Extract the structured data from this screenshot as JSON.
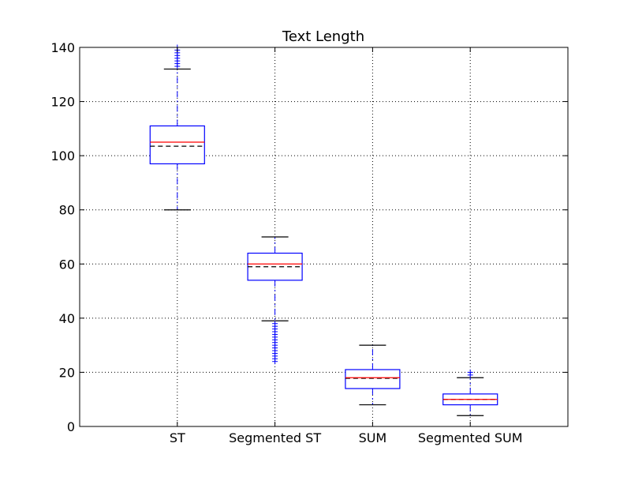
{
  "chart_data": {
    "type": "box",
    "title": "Text Length",
    "xlabel": "",
    "ylabel": "",
    "ylim": [
      0,
      140
    ],
    "yticks": [
      0,
      20,
      40,
      60,
      80,
      100,
      120,
      140
    ],
    "grid": true,
    "categories": [
      "ST",
      "Segmented ST",
      "SUM",
      "Segmented SUM"
    ],
    "boxes": [
      {
        "label": "ST",
        "whisker_low": 80,
        "q1": 97,
        "median": 105,
        "mean": 103.5,
        "q3": 111,
        "whisker_high": 132,
        "outliers_high": [
          133,
          134,
          135,
          136,
          137,
          138,
          139,
          140
        ],
        "outliers_low": []
      },
      {
        "label": "Segmented ST",
        "whisker_low": 39,
        "q1": 54,
        "median": 60,
        "mean": 59,
        "q3": 64,
        "whisker_high": 70,
        "outliers_high": [],
        "outliers_low": [
          24,
          25,
          26,
          27,
          28,
          29,
          30,
          31,
          32,
          33,
          34,
          35,
          36,
          37,
          38
        ]
      },
      {
        "label": "SUM",
        "whisker_low": 8,
        "q1": 14,
        "median": 18,
        "mean": 17.8,
        "q3": 21,
        "whisker_high": 30,
        "outliers_high": [],
        "outliers_low": []
      },
      {
        "label": "Segmented SUM",
        "whisker_low": 4,
        "q1": 8,
        "median": 10,
        "mean": 10,
        "q3": 12,
        "whisker_high": 18,
        "outliers_high": [
          19,
          20
        ],
        "outliers_low": []
      }
    ],
    "colors": {
      "box": "#0000ff",
      "median": "#ff0000",
      "mean": "#000000",
      "whisker": "#0000ff",
      "cap": "#000000",
      "outlier": "#0000ff",
      "grid": "#000000"
    }
  }
}
